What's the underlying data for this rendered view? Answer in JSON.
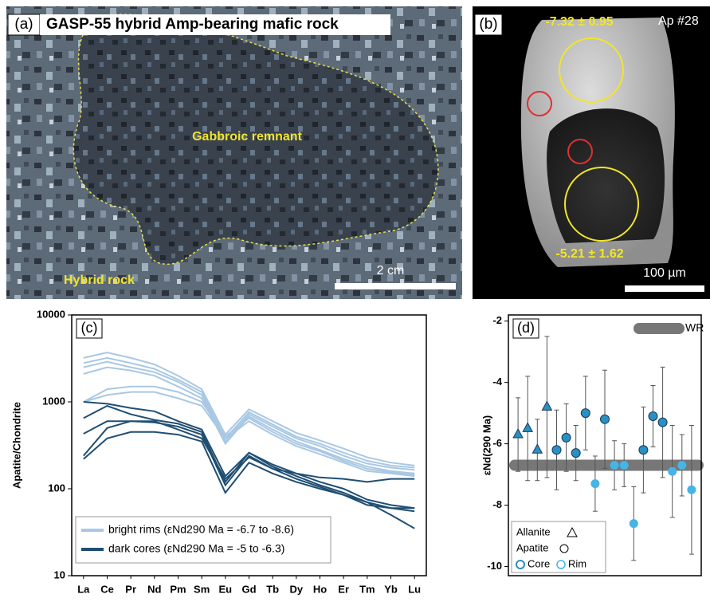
{
  "panel_a": {
    "label": "(a)",
    "title": "GASP-55 hybrid Amp-bearing mafic rock",
    "zone_label": "Gabbroic remnant",
    "host_label": "Hybrid rock",
    "scale": "2 cm"
  },
  "panel_b": {
    "label": "(b)",
    "grain": "Ap #28",
    "rim_value": "-7.32 ± 0.95",
    "core_value": "-5.21 ± 1.62",
    "scale": "100 µm"
  },
  "chart_data": [
    {
      "type": "line",
      "panel": "(c)",
      "ylabel": "Apatite/Chondrite",
      "log": true,
      "categories": [
        "La",
        "Ce",
        "Pr",
        "Nd",
        "Pm",
        "Sm",
        "Eu",
        "Gd",
        "Tb",
        "Dy",
        "Ho",
        "Er",
        "Tm",
        "Yb",
        "Lu"
      ],
      "ylim": [
        10,
        10000
      ],
      "yticks": [
        10,
        100,
        1000,
        10000
      ],
      "series": [
        {
          "name": "bright rims (εNd290 Ma = -6.7 to -8.6)",
          "color": "#a9c8e4",
          "lines": [
            [
              3200,
              3700,
              3200,
              2700,
              2000,
              1400,
              420,
              820,
              600,
              440,
              360,
              290,
              230,
              200,
              185
            ],
            [
              2800,
              3200,
              2800,
              2400,
              1800,
              1300,
              380,
              760,
              550,
              400,
              330,
              260,
              210,
              185,
              175
            ],
            [
              2500,
              2900,
              2500,
              2200,
              1700,
              1200,
              350,
              720,
              520,
              380,
              310,
              240,
              195,
              175,
              165
            ],
            [
              2100,
              2500,
              2300,
              2000,
              1500,
              1100,
              330,
              680,
              480,
              350,
              280,
              220,
              180,
              160,
              150
            ],
            [
              1000,
              1400,
              1500,
              1500,
              1300,
              1000,
              400,
              650,
              450,
              330,
              270,
              210,
              170,
              155,
              145
            ],
            [
              1000,
              1200,
              1300,
              1300,
              1100,
              900,
              380,
              600,
              420,
              310,
              250,
              200,
              160,
              150,
              140
            ]
          ]
        },
        {
          "name": "dark cores (εNd290 Ma = -5 to -6.3)",
          "color": "#1f4e73",
          "lines": [
            [
              1000,
              950,
              850,
              780,
              600,
              480,
              140,
              260,
              190,
              150,
              120,
              100,
              75,
              65,
              60
            ],
            [
              650,
              900,
              720,
              620,
              560,
              450,
              120,
              260,
              180,
              140,
              110,
              90,
              70,
              60,
              60
            ],
            [
              430,
              600,
              600,
              580,
              520,
              420,
              110,
              240,
              170,
              130,
              105,
              85,
              65,
              60,
              55
            ],
            [
              220,
              380,
              450,
              450,
              420,
              350,
              90,
              200,
              150,
              120,
              100,
              85,
              70,
              50,
              35
            ],
            [
              240,
              500,
              600,
              600,
              480,
              380,
              130,
              230,
              170,
              150,
              135,
              130,
              120,
              130,
              130
            ]
          ]
        }
      ]
    },
    {
      "type": "scatter",
      "panel": "(d)",
      "ylabel": "εNd(290 Ma)",
      "xlim": [
        0,
        20
      ],
      "ylim": [
        -10.3,
        -1.8
      ],
      "yticks": [
        -10,
        -8,
        -6,
        -4,
        -2
      ],
      "band": {
        "label": "WR",
        "value": -6.7,
        "color": "#777777"
      },
      "legend": {
        "mineral": [
          "Allanite",
          "Apatite"
        ],
        "zone": [
          "Core",
          "Rim"
        ]
      },
      "series": [
        {
          "marker": "triangle",
          "zone": 0,
          "color": "#2a8fc4",
          "x": [
            1,
            2,
            3,
            4
          ],
          "values": [
            -5.7,
            -5.5,
            -6.2,
            -4.8
          ],
          "errors": [
            1.2,
            1.7,
            1.0,
            2.3
          ]
        },
        {
          "marker": "circle",
          "zone": 0,
          "color": "#2a8fc4",
          "x": [
            5,
            6,
            7,
            8,
            10,
            14,
            15,
            16
          ],
          "values": [
            -6.2,
            -5.8,
            -6.3,
            -5.0,
            -5.2,
            -6.2,
            -5.1,
            -5.3
          ],
          "errors": [
            1.3,
            1.1,
            0.9,
            1.2,
            1.6,
            1.4,
            1.0,
            1.8
          ]
        },
        {
          "marker": "circle",
          "zone": 1,
          "color": "#45b4e6",
          "x": [
            9,
            11,
            12,
            13,
            17,
            18,
            19
          ],
          "values": [
            -7.3,
            -6.7,
            -6.7,
            -8.6,
            -6.9,
            -6.7,
            -7.5
          ],
          "errors": [
            0.9,
            0.8,
            0.7,
            1.2,
            1.5,
            1.0,
            2.1
          ]
        }
      ]
    }
  ]
}
